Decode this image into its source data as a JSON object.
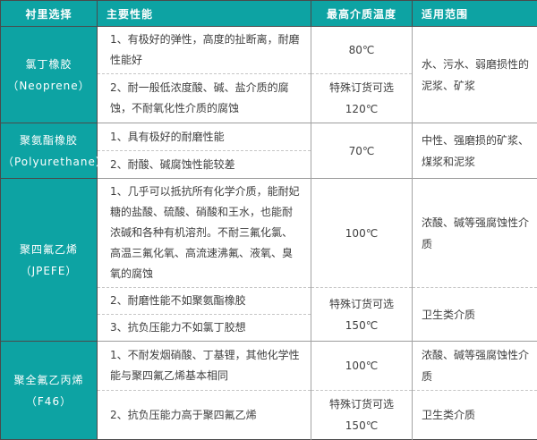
{
  "accent_color": "#0da3a3",
  "table": {
    "headers": [
      "衬里选择",
      "主要性能",
      "最高介质温度",
      "适用范围"
    ],
    "g1": {
      "name": "氯丁橡胶",
      "en": "（Neoprene）",
      "p1": "1、有极好的弹性，高度的扯断离，耐磨性能好",
      "p2": "2、耐一般低浓度酸、碱、盐介质的腐蚀，不耐氧化性介质的腐蚀",
      "t1": "80℃",
      "t2a": "特殊订货可选",
      "t2b": "120℃",
      "range": "水、污水、弱磨损性的泥浆、矿浆"
    },
    "g2": {
      "name": "聚氨酯橡胶",
      "en": "（Polyurethane）",
      "p1": "1、具有极好的耐磨性能",
      "p2": "2、耐酸、碱腐蚀性能较差",
      "t": "70℃",
      "range": "中性、强磨损的矿浆、煤浆和泥浆"
    },
    "g3": {
      "name": "聚四氟乙烯",
      "en": "（JPEFE）",
      "p1": "1、几乎可以抵抗所有化学介质，能耐妃糖的盐酸、硫酸、硝酸和王水，也能耐浓碱和各种有机溶剂。不耐三氟化氯、高温三氟化氧、高流速沸氟、液氧、臭氧的腐蚀",
      "p2": "2、耐磨性能不如聚氨酯橡胶",
      "p3": "3、抗负压能力不如氯丁胶想",
      "t1": "100℃",
      "t2a": "特殊订货可选",
      "t2b": "150℃",
      "range1": "浓酸、碱等强腐蚀性介质",
      "range2": "卫生类介质"
    },
    "g4": {
      "name": "聚全氟乙丙烯",
      "en": "（F46）",
      "p1": "1、不耐发烟硝酸、丁基锂，其他化学性能与聚四氟乙烯基本相同",
      "p2": "2、抗负压能力高于聚四氟乙烯",
      "t1": "100℃",
      "t2a": "特殊订货可选",
      "t2b": "150℃",
      "range1": "浓酸、碱等强腐蚀性介质",
      "range2": "卫生类介质"
    }
  }
}
